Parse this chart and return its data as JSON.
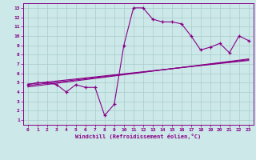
{
  "xlabel": "Windchill (Refroidissement éolien,°C)",
  "x_data": [
    0,
    1,
    2,
    3,
    4,
    5,
    6,
    7,
    8,
    9,
    10,
    11,
    12,
    13,
    14,
    15,
    16,
    17,
    18,
    19,
    20,
    21,
    22,
    23
  ],
  "y_main": [
    4.8,
    5.0,
    5.0,
    4.8,
    4.0,
    4.8,
    4.5,
    4.5,
    1.5,
    2.7,
    9.0,
    13.0,
    13.0,
    11.8,
    11.5,
    11.5,
    11.3,
    10.0,
    8.5,
    8.8,
    9.2,
    8.2,
    10.0,
    9.5
  ],
  "y_line1": [
    4.85,
    4.96,
    5.07,
    5.18,
    5.29,
    5.4,
    5.51,
    5.62,
    5.73,
    5.84,
    5.95,
    6.06,
    6.17,
    6.28,
    6.39,
    6.5,
    6.61,
    6.72,
    6.83,
    6.94,
    7.05,
    7.16,
    7.27,
    7.38
  ],
  "y_line2": [
    4.7,
    4.82,
    4.94,
    5.06,
    5.18,
    5.3,
    5.42,
    5.54,
    5.66,
    5.78,
    5.9,
    6.02,
    6.14,
    6.26,
    6.38,
    6.5,
    6.62,
    6.74,
    6.86,
    6.98,
    7.1,
    7.22,
    7.34,
    7.46
  ],
  "y_line3": [
    4.55,
    4.68,
    4.81,
    4.94,
    5.07,
    5.2,
    5.33,
    5.46,
    5.59,
    5.72,
    5.85,
    5.98,
    6.11,
    6.24,
    6.37,
    6.5,
    6.63,
    6.76,
    6.89,
    7.02,
    7.15,
    7.28,
    7.41,
    7.54
  ],
  "line_color": "#880088",
  "bg_color": "#cce8e8",
  "grid_color": "#aacccc",
  "ylim": [
    1,
    13
  ],
  "xlim": [
    0,
    23
  ],
  "yticks": [
    1,
    2,
    3,
    4,
    5,
    6,
    7,
    8,
    9,
    10,
    11,
    12,
    13
  ],
  "xticks": [
    0,
    1,
    2,
    3,
    4,
    5,
    6,
    7,
    8,
    9,
    10,
    11,
    12,
    13,
    14,
    15,
    16,
    17,
    18,
    19,
    20,
    21,
    22,
    23
  ]
}
